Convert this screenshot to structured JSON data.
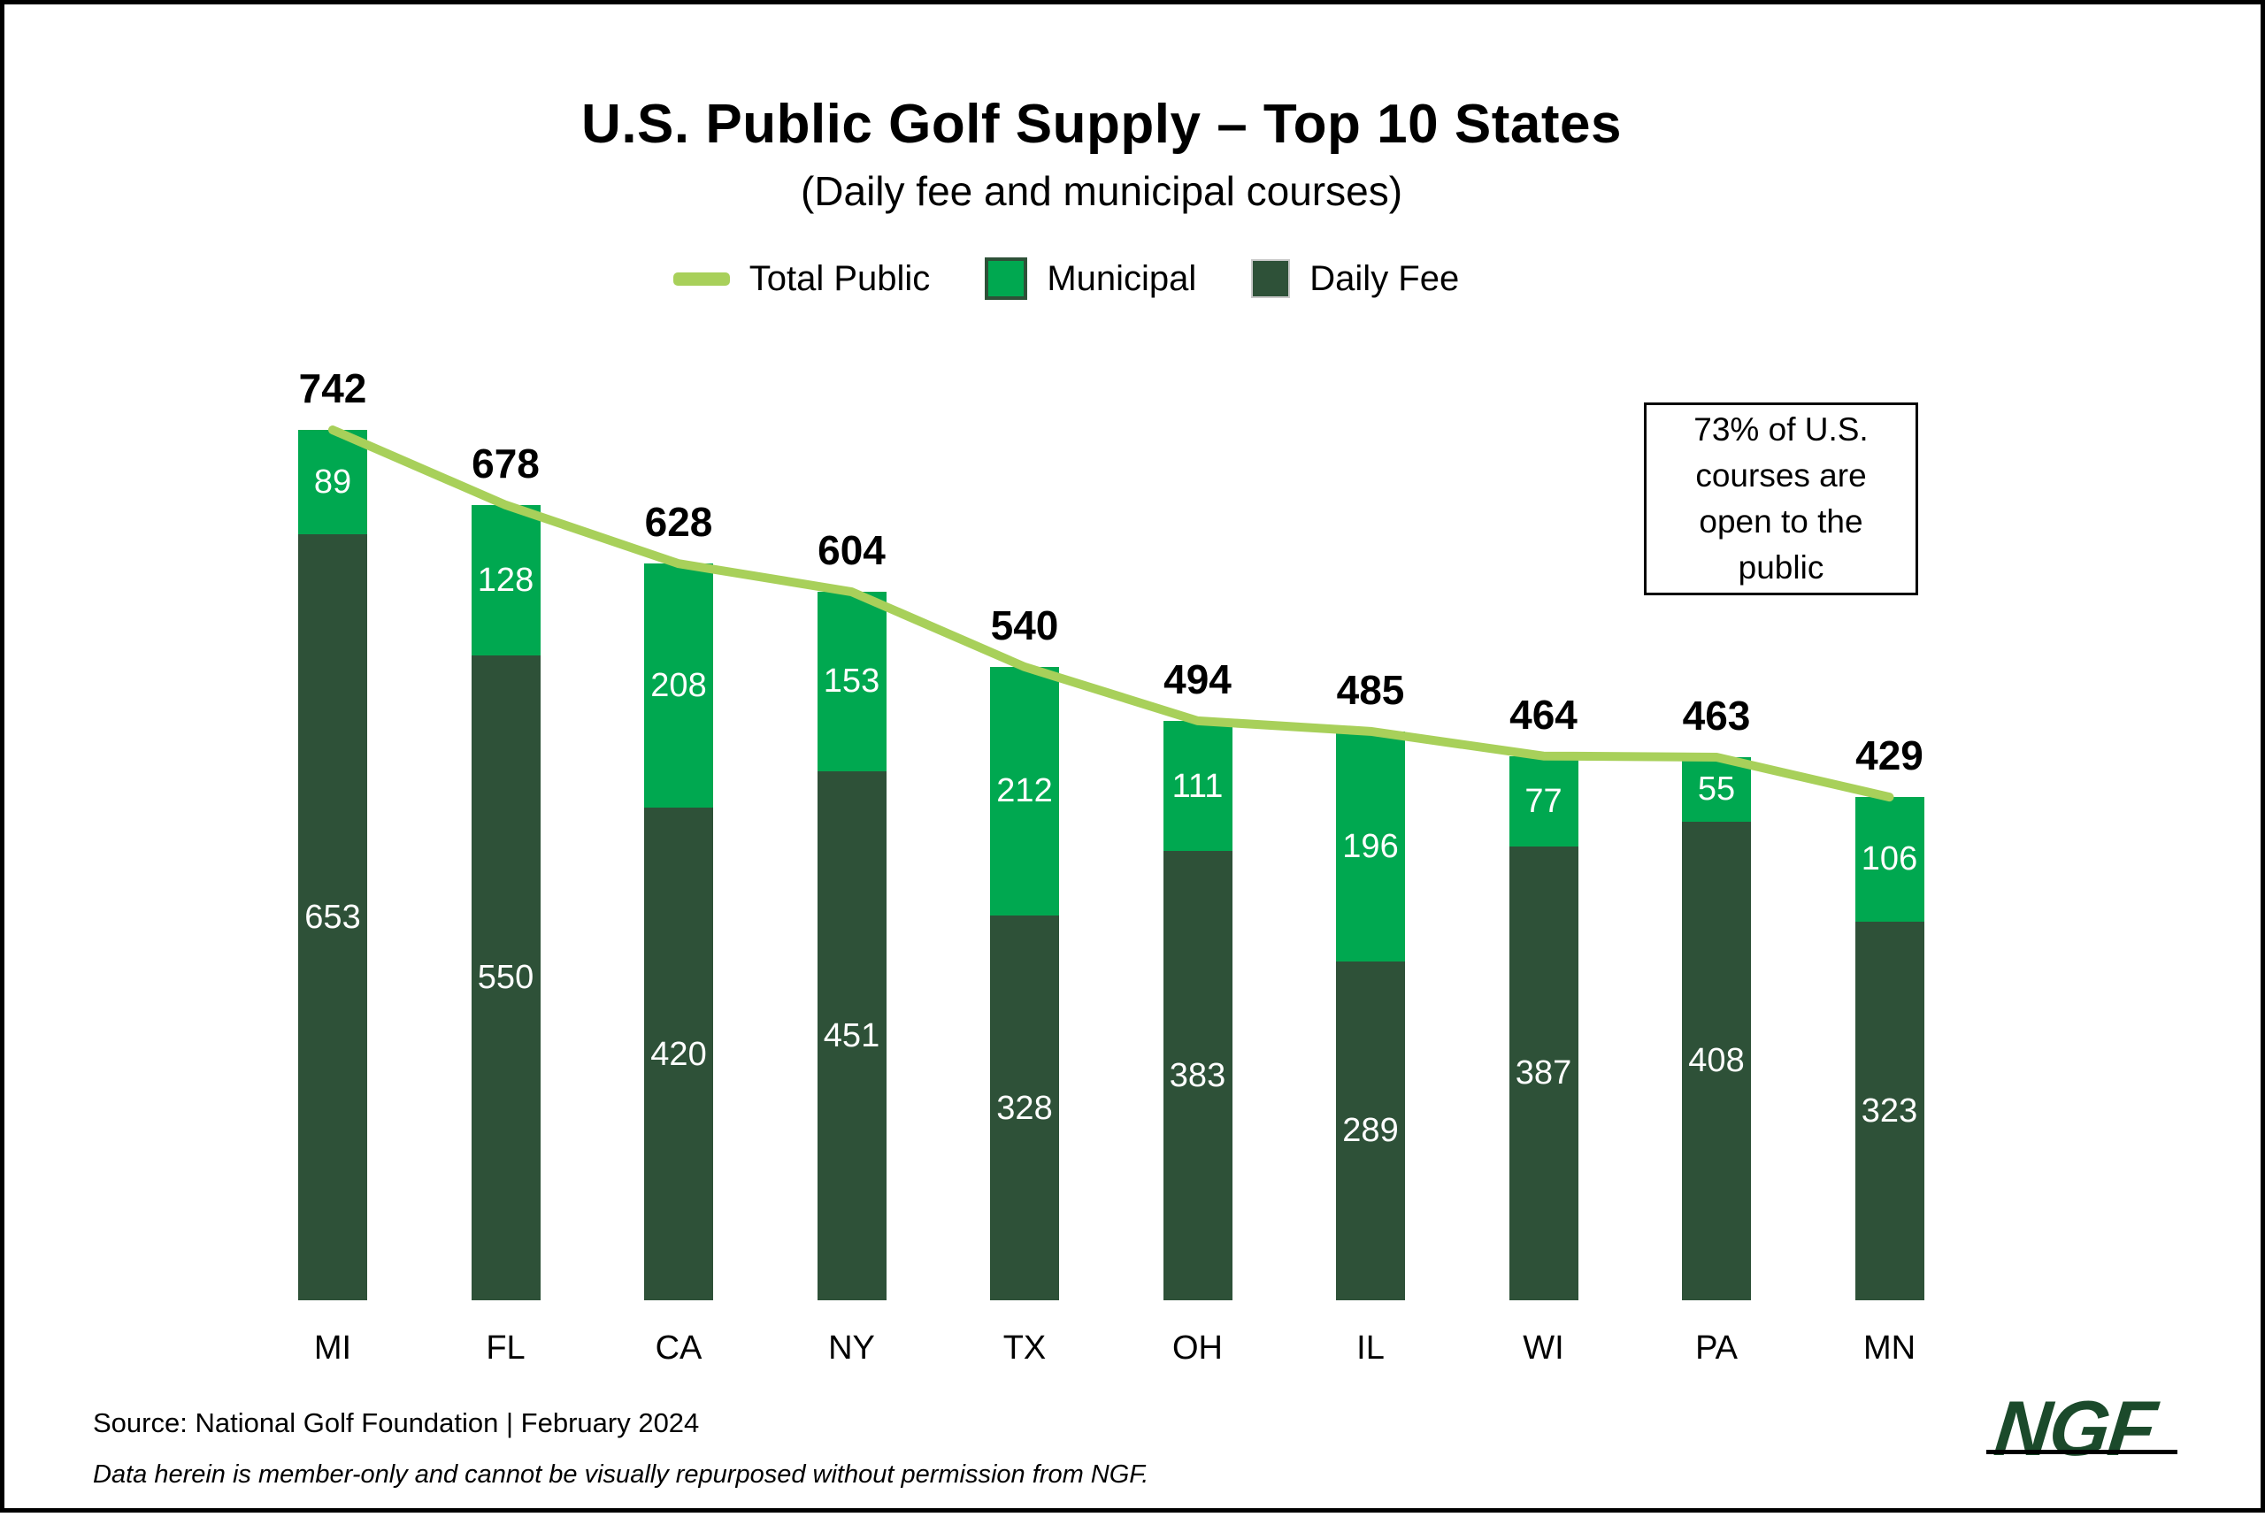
{
  "header": {
    "title": "U.S. Public Golf Supply – Top 10 States",
    "subtitle": "(Daily fee and municipal courses)"
  },
  "legend": {
    "items": [
      {
        "label": "Total Public",
        "swatch": "line",
        "color": "#A8D05A",
        "border": ""
      },
      {
        "label": "Municipal",
        "swatch": "square",
        "color": "#00A850",
        "border": "#2E5138"
      },
      {
        "label": "Daily Fee",
        "swatch": "square",
        "color": "#2E5138",
        "border": "#C9C9C9"
      }
    ]
  },
  "annotation": {
    "lines": [
      "73% of U.S.",
      "courses are",
      "open to the",
      "public"
    ]
  },
  "footer": {
    "source": "Source: National Golf Foundation | February 2024",
    "disclaimer": "Data herein is member-only and cannot be visually repurposed without permission from NGF.",
    "logo_text": "NGF",
    "logo_color": "#1B4A2B"
  },
  "chart_data": {
    "type": "bar",
    "stacked": true,
    "grid": false,
    "legend_position": "top",
    "title": "U.S. Public Golf Supply – Top 10 States",
    "subtitle": "(Daily fee and municipal courses)",
    "xlabel": "",
    "ylabel": "",
    "ylim": [
      0,
      780
    ],
    "categories": [
      "MI",
      "FL",
      "CA",
      "NY",
      "TX",
      "OH",
      "IL",
      "WI",
      "PA",
      "MN"
    ],
    "series": [
      {
        "name": "Daily Fee",
        "color": "#2E5138",
        "values": [
          653,
          550,
          420,
          451,
          328,
          383,
          289,
          387,
          408,
          323
        ]
      },
      {
        "name": "Municipal",
        "color": "#00A850",
        "values": [
          89,
          128,
          208,
          153,
          212,
          111,
          196,
          77,
          55,
          106
        ]
      }
    ],
    "line_series": {
      "name": "Total Public",
      "color": "#A8D05A",
      "values": [
        742,
        678,
        628,
        604,
        540,
        494,
        485,
        464,
        463,
        429
      ]
    }
  }
}
